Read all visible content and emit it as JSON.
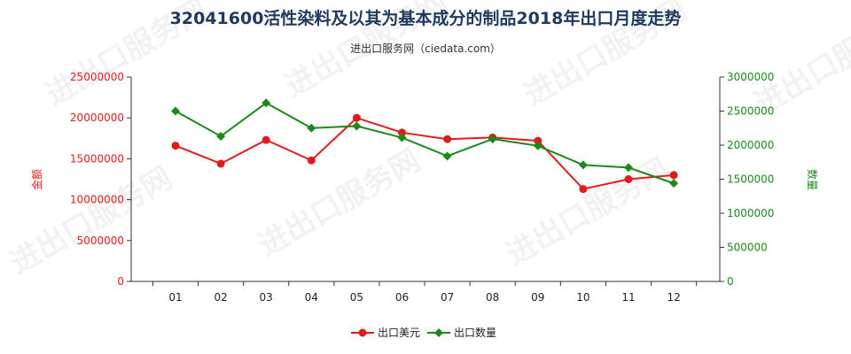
{
  "header": {
    "title": "32041600活性染料及以其为基本成分的制品2018年出口月度走势",
    "subtitle": "进出口服务网（ciedata.com）"
  },
  "watermark": "进出口服务网",
  "colors": {
    "amount": "#e31a1c",
    "quantity": "#1a8a1a",
    "axis": "#333333",
    "grid": "#e6e6e6",
    "title": "#1f3a5f"
  },
  "chart_data": {
    "type": "line",
    "title": "32041600活性染料及以其为基本成分的制品2018年出口月度走势",
    "subtitle": "进出口服务网（ciedata.com）",
    "categories": [
      "01",
      "02",
      "03",
      "04",
      "05",
      "06",
      "07",
      "08",
      "09",
      "10",
      "11",
      "12"
    ],
    "y_left": {
      "label": "金额",
      "ylim": [
        0,
        25000000
      ],
      "ticks": [
        "0",
        "5000000",
        "10000000",
        "15000000",
        "20000000",
        "25000000"
      ]
    },
    "y_right": {
      "label": "数量",
      "ylim": [
        0,
        3000000
      ],
      "ticks": [
        "0",
        "500000",
        "1000000",
        "1500000",
        "2000000",
        "2500000",
        "3000000"
      ]
    },
    "series": [
      {
        "name": "出口美元",
        "axis": "left",
        "values": [
          16600000,
          14400000,
          17300000,
          14800000,
          20000000,
          18200000,
          17400000,
          17600000,
          17200000,
          11300000,
          12500000,
          13000000
        ]
      },
      {
        "name": "出口数量",
        "axis": "right",
        "values": [
          2500000,
          2130000,
          2620000,
          2250000,
          2280000,
          2110000,
          1840000,
          2090000,
          1990000,
          1710000,
          1670000,
          1440000
        ]
      }
    ],
    "legend": "bottom-center",
    "grid": false
  }
}
